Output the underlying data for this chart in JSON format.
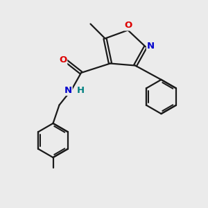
{
  "bg_color": "#ebebeb",
  "bond_color": "#1a1a1a",
  "bond_width": 1.6,
  "atom_colors": {
    "O": "#dd0000",
    "N": "#0000cc",
    "H": "#008080",
    "C": "#1a1a1a"
  },
  "font_size_atoms": 9.5
}
